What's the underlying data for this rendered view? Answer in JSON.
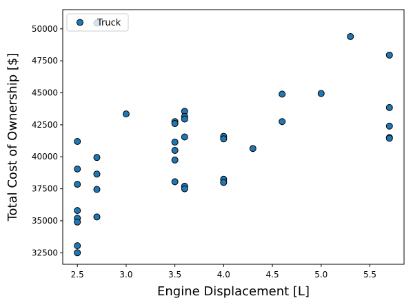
{
  "chart_data": {
    "type": "scatter",
    "xlabel": "Engine Displacement [L]",
    "ylabel": "Total Cost of Ownership [$]",
    "xlim": [
      2.35,
      5.85
    ],
    "ylim": [
      31600,
      51500
    ],
    "x_ticks": [
      2.5,
      3.0,
      3.5,
      4.0,
      4.5,
      5.0,
      5.5
    ],
    "x_tick_labels": [
      "2.5",
      "3.0",
      "3.5",
      "4.0",
      "4.5",
      "5.0",
      "5.5"
    ],
    "y_ticks": [
      32500,
      35000,
      37500,
      40000,
      42500,
      45000,
      47500,
      50000
    ],
    "y_tick_labels": [
      "32500",
      "35000",
      "37500",
      "40000",
      "42500",
      "45000",
      "47500",
      "50000"
    ],
    "grid": false,
    "legend": {
      "position": "top-left",
      "entries": [
        "Truck"
      ]
    },
    "series": [
      {
        "name": "Truck",
        "color": "#1f77b4",
        "edgecolor": "#000000",
        "points": [
          {
            "x": 2.5,
            "y": 41200
          },
          {
            "x": 2.5,
            "y": 39050
          },
          {
            "x": 2.5,
            "y": 37850
          },
          {
            "x": 2.5,
            "y": 35800
          },
          {
            "x": 2.5,
            "y": 35200
          },
          {
            "x": 2.5,
            "y": 34900
          },
          {
            "x": 2.5,
            "y": 33050
          },
          {
            "x": 2.5,
            "y": 32500
          },
          {
            "x": 2.7,
            "y": 50450
          },
          {
            "x": 2.7,
            "y": 39950
          },
          {
            "x": 2.7,
            "y": 38650
          },
          {
            "x": 2.7,
            "y": 37450
          },
          {
            "x": 2.7,
            "y": 35300
          },
          {
            "x": 3.0,
            "y": 43350
          },
          {
            "x": 3.5,
            "y": 42750
          },
          {
            "x": 3.5,
            "y": 42600
          },
          {
            "x": 3.5,
            "y": 41150
          },
          {
            "x": 3.5,
            "y": 40500
          },
          {
            "x": 3.5,
            "y": 39750
          },
          {
            "x": 3.5,
            "y": 38050
          },
          {
            "x": 3.6,
            "y": 43550
          },
          {
            "x": 3.6,
            "y": 43150
          },
          {
            "x": 3.6,
            "y": 42950
          },
          {
            "x": 3.6,
            "y": 41550
          },
          {
            "x": 3.6,
            "y": 37700
          },
          {
            "x": 3.6,
            "y": 37500
          },
          {
            "x": 4.0,
            "y": 41600
          },
          {
            "x": 4.0,
            "y": 41400
          },
          {
            "x": 4.0,
            "y": 38250
          },
          {
            "x": 4.0,
            "y": 38000
          },
          {
            "x": 4.3,
            "y": 40650
          },
          {
            "x": 4.6,
            "y": 44900
          },
          {
            "x": 4.6,
            "y": 42750
          },
          {
            "x": 5.0,
            "y": 44950
          },
          {
            "x": 5.3,
            "y": 49400
          },
          {
            "x": 5.7,
            "y": 47950
          },
          {
            "x": 5.7,
            "y": 43850
          },
          {
            "x": 5.7,
            "y": 42400
          },
          {
            "x": 5.7,
            "y": 41500
          },
          {
            "x": 5.7,
            "y": 41450
          }
        ]
      }
    ]
  }
}
